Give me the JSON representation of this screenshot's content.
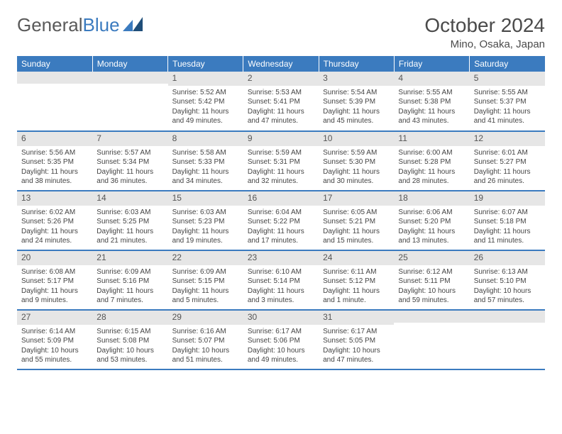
{
  "logo": {
    "part1": "General",
    "part2": "Blue"
  },
  "title": "October 2024",
  "location": "Mino, Osaka, Japan",
  "colors": {
    "header_bg": "#3b7bbf",
    "header_fg": "#ffffff",
    "daynum_bg": "#e6e6e6",
    "row_border": "#3b7bbf",
    "text": "#444444",
    "logo_gray": "#5a5a5a",
    "logo_blue": "#3b7bbf"
  },
  "day_headers": [
    "Sunday",
    "Monday",
    "Tuesday",
    "Wednesday",
    "Thursday",
    "Friday",
    "Saturday"
  ],
  "weeks": [
    [
      null,
      null,
      {
        "n": "1",
        "sr": "5:52 AM",
        "ss": "5:42 PM",
        "dl": "11 hours and 49 minutes."
      },
      {
        "n": "2",
        "sr": "5:53 AM",
        "ss": "5:41 PM",
        "dl": "11 hours and 47 minutes."
      },
      {
        "n": "3",
        "sr": "5:54 AM",
        "ss": "5:39 PM",
        "dl": "11 hours and 45 minutes."
      },
      {
        "n": "4",
        "sr": "5:55 AM",
        "ss": "5:38 PM",
        "dl": "11 hours and 43 minutes."
      },
      {
        "n": "5",
        "sr": "5:55 AM",
        "ss": "5:37 PM",
        "dl": "11 hours and 41 minutes."
      }
    ],
    [
      {
        "n": "6",
        "sr": "5:56 AM",
        "ss": "5:35 PM",
        "dl": "11 hours and 38 minutes."
      },
      {
        "n": "7",
        "sr": "5:57 AM",
        "ss": "5:34 PM",
        "dl": "11 hours and 36 minutes."
      },
      {
        "n": "8",
        "sr": "5:58 AM",
        "ss": "5:33 PM",
        "dl": "11 hours and 34 minutes."
      },
      {
        "n": "9",
        "sr": "5:59 AM",
        "ss": "5:31 PM",
        "dl": "11 hours and 32 minutes."
      },
      {
        "n": "10",
        "sr": "5:59 AM",
        "ss": "5:30 PM",
        "dl": "11 hours and 30 minutes."
      },
      {
        "n": "11",
        "sr": "6:00 AM",
        "ss": "5:28 PM",
        "dl": "11 hours and 28 minutes."
      },
      {
        "n": "12",
        "sr": "6:01 AM",
        "ss": "5:27 PM",
        "dl": "11 hours and 26 minutes."
      }
    ],
    [
      {
        "n": "13",
        "sr": "6:02 AM",
        "ss": "5:26 PM",
        "dl": "11 hours and 24 minutes."
      },
      {
        "n": "14",
        "sr": "6:03 AM",
        "ss": "5:25 PM",
        "dl": "11 hours and 21 minutes."
      },
      {
        "n": "15",
        "sr": "6:03 AM",
        "ss": "5:23 PM",
        "dl": "11 hours and 19 minutes."
      },
      {
        "n": "16",
        "sr": "6:04 AM",
        "ss": "5:22 PM",
        "dl": "11 hours and 17 minutes."
      },
      {
        "n": "17",
        "sr": "6:05 AM",
        "ss": "5:21 PM",
        "dl": "11 hours and 15 minutes."
      },
      {
        "n": "18",
        "sr": "6:06 AM",
        "ss": "5:20 PM",
        "dl": "11 hours and 13 minutes."
      },
      {
        "n": "19",
        "sr": "6:07 AM",
        "ss": "5:18 PM",
        "dl": "11 hours and 11 minutes."
      }
    ],
    [
      {
        "n": "20",
        "sr": "6:08 AM",
        "ss": "5:17 PM",
        "dl": "11 hours and 9 minutes."
      },
      {
        "n": "21",
        "sr": "6:09 AM",
        "ss": "5:16 PM",
        "dl": "11 hours and 7 minutes."
      },
      {
        "n": "22",
        "sr": "6:09 AM",
        "ss": "5:15 PM",
        "dl": "11 hours and 5 minutes."
      },
      {
        "n": "23",
        "sr": "6:10 AM",
        "ss": "5:14 PM",
        "dl": "11 hours and 3 minutes."
      },
      {
        "n": "24",
        "sr": "6:11 AM",
        "ss": "5:12 PM",
        "dl": "11 hours and 1 minute."
      },
      {
        "n": "25",
        "sr": "6:12 AM",
        "ss": "5:11 PM",
        "dl": "10 hours and 59 minutes."
      },
      {
        "n": "26",
        "sr": "6:13 AM",
        "ss": "5:10 PM",
        "dl": "10 hours and 57 minutes."
      }
    ],
    [
      {
        "n": "27",
        "sr": "6:14 AM",
        "ss": "5:09 PM",
        "dl": "10 hours and 55 minutes."
      },
      {
        "n": "28",
        "sr": "6:15 AM",
        "ss": "5:08 PM",
        "dl": "10 hours and 53 minutes."
      },
      {
        "n": "29",
        "sr": "6:16 AM",
        "ss": "5:07 PM",
        "dl": "10 hours and 51 minutes."
      },
      {
        "n": "30",
        "sr": "6:17 AM",
        "ss": "5:06 PM",
        "dl": "10 hours and 49 minutes."
      },
      {
        "n": "31",
        "sr": "6:17 AM",
        "ss": "5:05 PM",
        "dl": "10 hours and 47 minutes."
      },
      null,
      null
    ]
  ],
  "labels": {
    "sunrise": "Sunrise:",
    "sunset": "Sunset:",
    "daylight": "Daylight:"
  }
}
